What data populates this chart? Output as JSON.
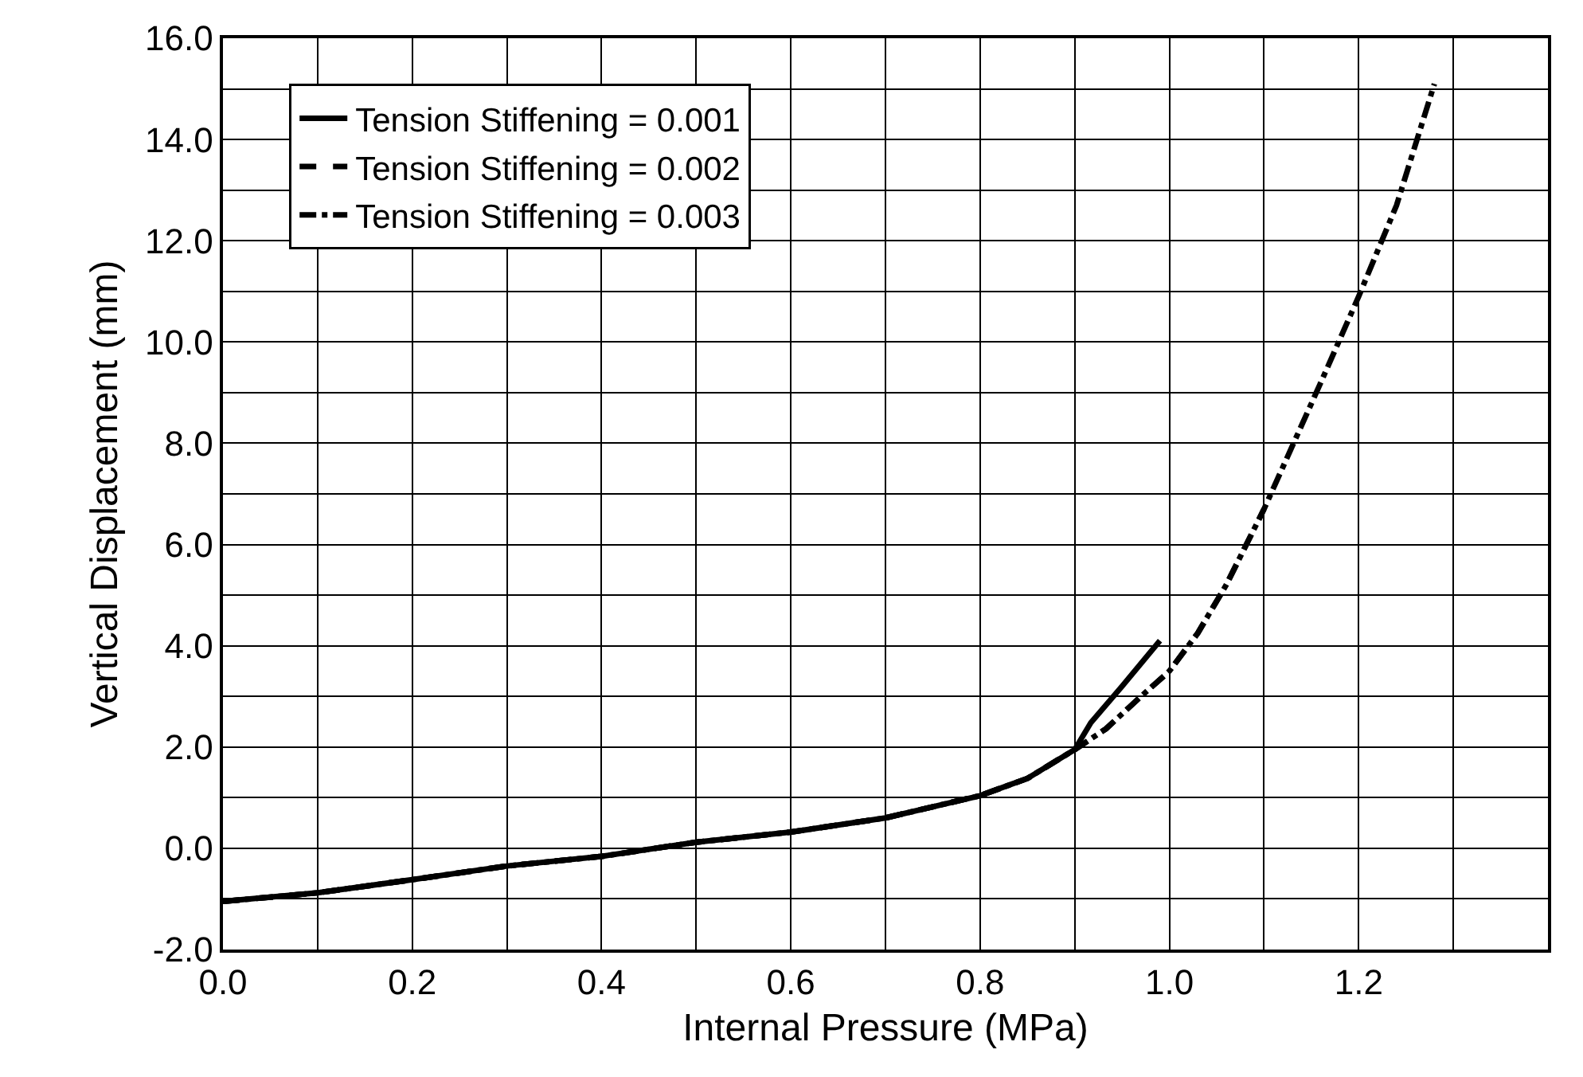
{
  "chart_data": {
    "type": "line",
    "xlabel": "Internal Pressure (MPa)",
    "ylabel": "Vertical Displacement (mm)",
    "xlim": [
      0,
      1.4
    ],
    "ylim": [
      -2,
      16
    ],
    "xticks": [
      {
        "value": 0,
        "label": "0.0"
      },
      {
        "value": 0.1,
        "label": null
      },
      {
        "value": 0.2,
        "label": "0.2"
      },
      {
        "value": 0.3,
        "label": null
      },
      {
        "value": 0.4,
        "label": "0.4"
      },
      {
        "value": 0.5,
        "label": null
      },
      {
        "value": 0.6,
        "label": "0.6"
      },
      {
        "value": 0.7,
        "label": null
      },
      {
        "value": 0.8,
        "label": "0.8"
      },
      {
        "value": 0.9,
        "label": null
      },
      {
        "value": 1.0,
        "label": "1.0"
      },
      {
        "value": 1.1,
        "label": null
      },
      {
        "value": 1.2,
        "label": "1.2"
      },
      {
        "value": 1.3,
        "label": null
      }
    ],
    "yticks": [
      {
        "value": -2,
        "label": "-2.0"
      },
      {
        "value": -1,
        "label": null
      },
      {
        "value": 0,
        "label": "0.0"
      },
      {
        "value": 1,
        "label": null
      },
      {
        "value": 2,
        "label": "2.0"
      },
      {
        "value": 3,
        "label": null
      },
      {
        "value": 4,
        "label": "4.0"
      },
      {
        "value": 5,
        "label": null
      },
      {
        "value": 6,
        "label": "6.0"
      },
      {
        "value": 7,
        "label": null
      },
      {
        "value": 8,
        "label": "8.0"
      },
      {
        "value": 9,
        "label": null
      },
      {
        "value": 10,
        "label": "10.0"
      },
      {
        "value": 11,
        "label": null
      },
      {
        "value": 12,
        "label": "12.0"
      },
      {
        "value": 13,
        "label": null
      },
      {
        "value": 14,
        "label": "14.0"
      },
      {
        "value": 15,
        "label": null
      },
      {
        "value": 16,
        "label": "16.0"
      }
    ],
    "grid": true,
    "legend": "top left",
    "marker": "none",
    "series": [
      {
        "name": "Tension Stiffening = 0.001",
        "color": "#000000",
        "line_style": "solid",
        "x": [
          0,
          0.1,
          0.2,
          0.3,
          0.4,
          0.5,
          0.6,
          0.7,
          0.8,
          0.85,
          0.9,
          0.917,
          0.95,
          0.99
        ],
        "values": [
          -1.05,
          -0.88,
          -0.62,
          -0.35,
          -0.16,
          0.12,
          0.32,
          0.6,
          1.04,
          1.38,
          1.95,
          2.48,
          3.2,
          4.1
        ]
      },
      {
        "name": "Tension Stiffening = 0.002",
        "color": "#000000",
        "line_style": "dashed",
        "x": [
          0,
          0.1,
          0.2,
          0.3,
          0.4,
          0.5,
          0.6,
          0.7,
          0.8,
          0.85,
          0.9,
          0.933,
          0.97,
          1.0,
          1.03,
          1.06,
          1.1
        ],
        "values": [
          -1.05,
          -0.88,
          -0.62,
          -0.35,
          -0.16,
          0.12,
          0.32,
          0.6,
          1.04,
          1.38,
          1.95,
          2.36,
          3.0,
          3.5,
          4.25,
          5.2,
          6.7
        ]
      },
      {
        "name": "Tension Stiffening = 0.003",
        "color": "#000000",
        "line_style": "dashdot",
        "x": [
          0,
          0.1,
          0.2,
          0.3,
          0.4,
          0.5,
          0.6,
          0.7,
          0.8,
          0.85,
          0.9,
          0.933,
          0.97,
          1.0,
          1.03,
          1.06,
          1.1,
          1.16,
          1.2,
          1.24,
          1.28
        ],
        "values": [
          -1.05,
          -0.88,
          -0.62,
          -0.35,
          -0.16,
          0.12,
          0.32,
          0.6,
          1.04,
          1.38,
          1.95,
          2.36,
          3.0,
          3.5,
          4.25,
          5.2,
          6.7,
          9.2,
          10.9,
          12.7,
          15.1
        ]
      }
    ]
  }
}
